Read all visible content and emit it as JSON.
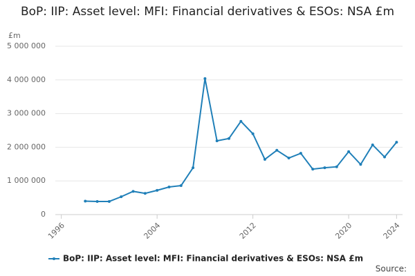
{
  "chart_data": {
    "type": "line",
    "title": "BoP: IIP: Asset level: MFI: Financial derivatives & ESOs: NSA £m",
    "y_unit": "£m",
    "source": "Source:",
    "x": [
      1998,
      1999,
      2000,
      2001,
      2002,
      2003,
      2004,
      2005,
      2006,
      2007,
      2008,
      2009,
      2010,
      2011,
      2012,
      2013,
      2014,
      2015,
      2016,
      2017,
      2018,
      2019,
      2020,
      2021,
      2022,
      2023,
      2024
    ],
    "series": [
      {
        "name": "BoP: IIP: Asset level: MFI: Financial derivatives & ESOs: NSA £m",
        "color": "#1f7fb8",
        "values": [
          400000,
          390000,
          390000,
          530000,
          690000,
          630000,
          720000,
          820000,
          860000,
          1390000,
          4040000,
          2190000,
          2260000,
          2770000,
          2400000,
          1640000,
          1910000,
          1680000,
          1820000,
          1350000,
          1390000,
          1420000,
          1870000,
          1490000,
          2070000,
          1710000,
          2150000
        ]
      }
    ],
    "xlim": [
      1995.5,
      2024.5
    ],
    "xticks": [
      1996,
      2004,
      2012,
      2020,
      2024
    ],
    "ylim": [
      0,
      5000000
    ],
    "yticks": [
      0,
      {
        "value": 1000000,
        "label": "1 000 000"
      },
      {
        "value": 2000000,
        "label": "2 000 000"
      },
      {
        "value": 3000000,
        "label": "3 000 000"
      },
      {
        "value": 4000000,
        "label": "4 000 000"
      },
      {
        "value": 5000000,
        "label": "5 000 000"
      }
    ],
    "grid": true,
    "legend": "bottom"
  }
}
